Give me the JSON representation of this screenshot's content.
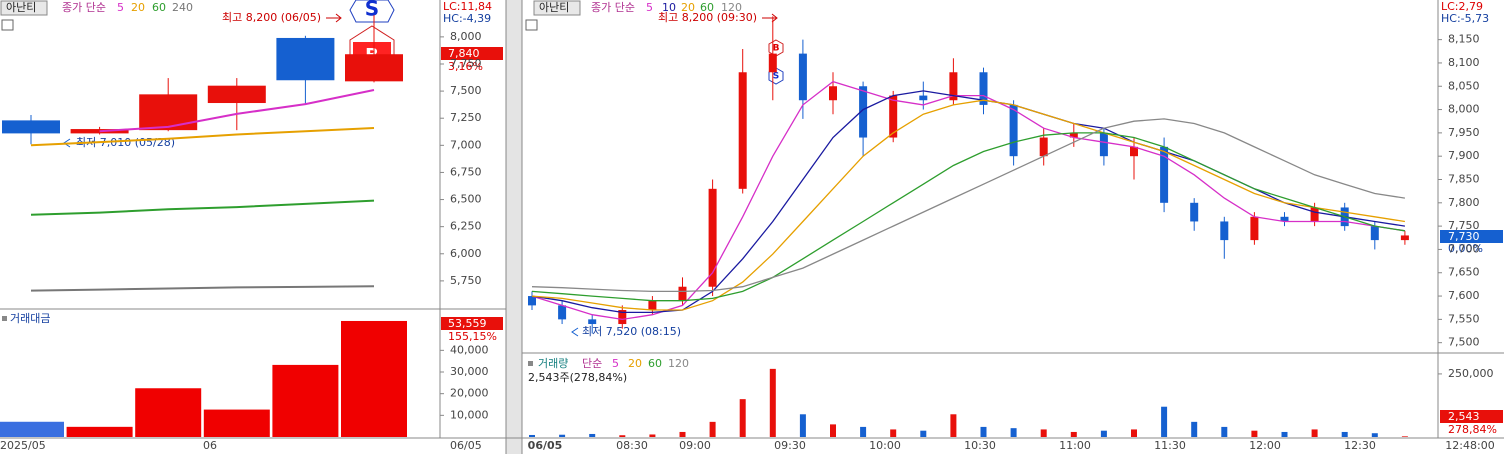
{
  "chart_data": [
    {
      "type": "candlestick",
      "button": "아난티",
      "legend_label": "종가 단순",
      "open": [
        7230,
        7110,
        7140,
        7390,
        7990,
        7590
      ],
      "high": [
        7280,
        7170,
        7620,
        7620,
        8010,
        8200
      ],
      "low": [
        7010,
        7100,
        7130,
        7140,
        7380,
        7580
      ],
      "close": [
        7110,
        7150,
        7470,
        7550,
        7600,
        7840
      ],
      "up_color": "#e8100b",
      "down_color": "#1560d0",
      "series": [
        {
          "name": "5",
          "color": "#d62fc8",
          "values": [
            null,
            7130,
            7170,
            7290,
            7380,
            7510
          ]
        },
        {
          "name": "20",
          "color": "#e6a000",
          "values": [
            7000,
            7030,
            7060,
            7100,
            7130,
            7160
          ]
        },
        {
          "name": "60",
          "color": "#2e9e2e",
          "values": [
            6360,
            6380,
            6410,
            6430,
            6460,
            6490
          ]
        },
        {
          "name": "240",
          "color": "#777777",
          "values": [
            5660,
            5670,
            5680,
            5690,
            5695,
            5700
          ]
        }
      ],
      "ylim": [
        5500,
        8340
      ],
      "yticks": [
        {
          "value": 8000,
          "label": "8,000"
        },
        {
          "value": 7750,
          "label": "7,750"
        },
        {
          "value": 7500,
          "label": "7,500"
        },
        {
          "value": 7250,
          "label": "7,250"
        },
        {
          "value": 7000,
          "label": "7,000"
        },
        {
          "value": 6750,
          "label": "6,750"
        },
        {
          "value": 6500,
          "label": "6,500"
        },
        {
          "value": 6250,
          "label": "6,250"
        },
        {
          "value": 6000,
          "label": "6,000"
        },
        {
          "value": 5750,
          "label": "5,750"
        }
      ],
      "high_label": "최고 8,200 (06/05)",
      "low_label": "최저 7,010 (05/28)",
      "sell_marker": "S",
      "buy_marker": "B",
      "lc": "LC:11,84",
      "hc": "HC:-4,39",
      "price_label": "7,840",
      "change_label": "3,16%",
      "x_labels": [
        "2025/05",
        "06"
      ],
      "axis_date": "06/05"
    },
    {
      "type": "bar",
      "title": "거래대금",
      "values": [
        7030,
        4690,
        22500,
        12660,
        33280,
        53559
      ],
      "colors": [
        "#3a6fe0",
        "#f00000",
        "#f00000",
        "#f00000",
        "#f00000",
        "#f00000"
      ],
      "ylim": [
        0,
        57700
      ],
      "yticks": [
        {
          "value": 10000,
          "label": "10,000"
        },
        {
          "value": 20000,
          "label": "20,000"
        },
        {
          "value": 30000,
          "label": "30,000"
        },
        {
          "value": 40000,
          "label": "40,000"
        }
      ],
      "value_label": "53,559",
      "change_label": "155,15%"
    },
    {
      "type": "candlestick",
      "button": "아난티",
      "legend_label": "종가 단순",
      "open": [
        7600,
        7580,
        7550,
        7540,
        7570,
        7590,
        7620,
        7830,
        8080,
        8120,
        8020,
        8050,
        7940,
        8030,
        8020,
        8080,
        8010,
        7900,
        7940,
        7950,
        7900,
        7920,
        7800,
        7760,
        7720,
        7770,
        7760,
        7790,
        7750,
        7720
      ],
      "high": [
        7610,
        7590,
        7560,
        7580,
        7600,
        7640,
        7850,
        8130,
        8200,
        8150,
        8080,
        8060,
        8040,
        8060,
        8110,
        8090,
        8020,
        7960,
        7970,
        7960,
        7940,
        7940,
        7810,
        7770,
        7780,
        7780,
        7800,
        7800,
        7760,
        7740
      ],
      "low": [
        7570,
        7540,
        7520,
        7530,
        7560,
        7580,
        7600,
        7820,
        8020,
        7980,
        7990,
        7900,
        7930,
        8000,
        8010,
        7990,
        7880,
        7880,
        7920,
        7880,
        7850,
        7780,
        7740,
        7680,
        7710,
        7750,
        7750,
        7740,
        7700,
        7710
      ],
      "close": [
        7580,
        7550,
        7540,
        7570,
        7590,
        7620,
        7830,
        8080,
        8120,
        8020,
        8050,
        7940,
        8030,
        8020,
        8080,
        8010,
        7900,
        7940,
        7950,
        7900,
        7920,
        7800,
        7760,
        7720,
        7770,
        7760,
        7790,
        7750,
        7720,
        7730
      ],
      "up_color": "#e8100b",
      "down_color": "#1560d0",
      "series": [
        {
          "name": "5",
          "color": "#d62fc8",
          "values": [
            7600,
            7580,
            7560,
            7550,
            7560,
            7580,
            7650,
            7770,
            7900,
            8010,
            8060,
            8040,
            8020,
            8010,
            8030,
            8030,
            8000,
            7960,
            7940,
            7930,
            7920,
            7900,
            7860,
            7810,
            7770,
            7760,
            7760,
            7760,
            7750,
            7740
          ]
        },
        {
          "name": "10",
          "color": "#1a1aa0",
          "values": [
            7600,
            7590,
            7575,
            7565,
            7565,
            7570,
            7610,
            7680,
            7760,
            7850,
            7940,
            8000,
            8030,
            8040,
            8030,
            8020,
            8010,
            7990,
            7970,
            7960,
            7930,
            7910,
            7890,
            7860,
            7830,
            7800,
            7780,
            7770,
            7760,
            7750
          ]
        },
        {
          "name": "20",
          "color": "#e6a000",
          "values": [
            7600,
            7595,
            7585,
            7575,
            7570,
            7570,
            7590,
            7630,
            7690,
            7760,
            7830,
            7900,
            7950,
            7990,
            8010,
            8020,
            8010,
            7990,
            7970,
            7950,
            7930,
            7910,
            7880,
            7850,
            7820,
            7800,
            7790,
            7780,
            7770,
            7760
          ]
        },
        {
          "name": "60",
          "color": "#2e9e2e",
          "values": [
            7610,
            7605,
            7600,
            7595,
            7590,
            7590,
            7595,
            7610,
            7640,
            7680,
            7720,
            7760,
            7800,
            7840,
            7880,
            7910,
            7930,
            7945,
            7950,
            7950,
            7940,
            7920,
            7890,
            7860,
            7830,
            7810,
            7790,
            7770,
            7750,
            7740
          ]
        },
        {
          "name": "120",
          "color": "#888888",
          "values": [
            7620,
            7618,
            7615,
            7612,
            7610,
            7610,
            7612,
            7620,
            7640,
            7660,
            7690,
            7720,
            7750,
            7780,
            7810,
            7840,
            7870,
            7900,
            7930,
            7960,
            7975,
            7980,
            7970,
            7950,
            7920,
            7890,
            7860,
            7840,
            7820,
            7810
          ]
        }
      ],
      "ylim": [
        7480,
        8235
      ],
      "yticks": [
        {
          "value": 8150,
          "label": "8,150"
        },
        {
          "value": 8100,
          "label": "8,100"
        },
        {
          "value": 8050,
          "label": "8,050"
        },
        {
          "value": 8000,
          "label": "8,000"
        },
        {
          "value": 7950,
          "label": "7,950"
        },
        {
          "value": 7900,
          "label": "7,900"
        },
        {
          "value": 7850,
          "label": "7,850"
        },
        {
          "value": 7800,
          "label": "7,800"
        },
        {
          "value": 7750,
          "label": "7,750"
        },
        {
          "value": 7700,
          "label": "7,700"
        },
        {
          "value": 7650,
          "label": "7,650"
        },
        {
          "value": 7600,
          "label": "7,600"
        },
        {
          "value": 7550,
          "label": "7,550"
        },
        {
          "value": 7500,
          "label": "7,500"
        }
      ],
      "high_label": "최고 8,200 (09:30)",
      "low_label": "최저 7,520 (08:15)",
      "sell_marker": "S",
      "buy_marker": "B",
      "lc": "LC:2,79",
      "hc": "HC:-5,73",
      "price_label": "7,730",
      "change_label": "0,00%",
      "x_labels": [
        "06/05",
        "08:30",
        "09:00",
        "09:30",
        "10:00",
        "10:30",
        "11:00",
        "11:30",
        "12:00",
        "12:30",
        "12:48:00"
      ]
    },
    {
      "type": "bar",
      "title": "거래량",
      "legend_label": "단순",
      "legend": [
        {
          "name": "5",
          "color": "#d62fc8"
        },
        {
          "name": "20",
          "color": "#e6a000"
        },
        {
          "name": "60",
          "color": "#2e9e2e"
        },
        {
          "name": "120",
          "color": "#888888"
        }
      ],
      "info": "2,543주(278,84%)",
      "values": [
        8000,
        9000,
        12000,
        7000,
        10000,
        20000,
        60000,
        150000,
        270000,
        90000,
        50000,
        40000,
        30000,
        25000,
        90000,
        40000,
        35000,
        30000,
        20000,
        25000,
        30000,
        120000,
        60000,
        40000,
        25000,
        20000,
        30000,
        20000,
        15000,
        2543
      ],
      "colors": [
        "#1560d0",
        "#1560d0",
        "#1560d0",
        "#e8100b",
        "#e8100b",
        "#e8100b",
        "#e8100b",
        "#e8100b",
        "#e8100b",
        "#1560d0",
        "#e8100b",
        "#1560d0",
        "#e8100b",
        "#1560d0",
        "#e8100b",
        "#1560d0",
        "#1560d0",
        "#e8100b",
        "#e8100b",
        "#1560d0",
        "#e8100b",
        "#1560d0",
        "#1560d0",
        "#1560d0",
        "#e8100b",
        "#1560d0",
        "#e8100b",
        "#1560d0",
        "#1560d0",
        "#e8100b"
      ],
      "ylim": [
        0,
        321000
      ],
      "yticks": [
        {
          "value": 250000,
          "label": "250,000"
        }
      ],
      "value_label": "2,543",
      "change_label": "278,84%"
    }
  ]
}
